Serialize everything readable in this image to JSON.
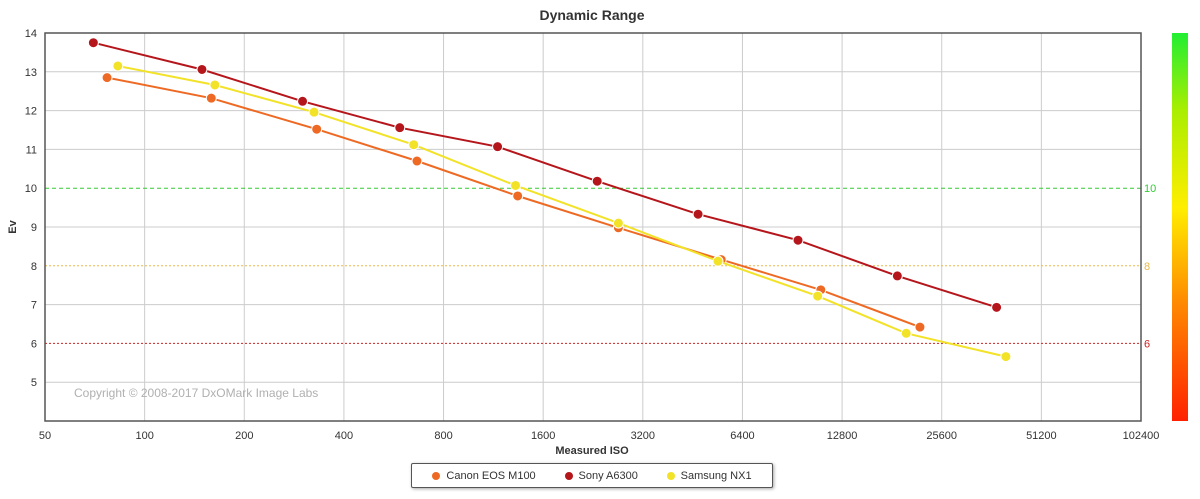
{
  "chart_data": {
    "type": "line",
    "title": "Dynamic Range",
    "xlabel": "Measured ISO",
    "ylabel": "Ev",
    "xscale": "log2",
    "xlim": [
      50,
      102400
    ],
    "ylim": [
      4,
      14
    ],
    "xticks": [
      "50",
      "100",
      "200",
      "400",
      "800",
      "1600",
      "3200",
      "6400",
      "12800",
      "25600",
      "51200",
      "102400"
    ],
    "yticks": [
      "5",
      "6",
      "7",
      "8",
      "9",
      "10",
      "11",
      "12",
      "13",
      "14"
    ],
    "grid": true,
    "legend_position": "bottom-center",
    "reference_lines": [
      {
        "y": 10,
        "label": "10",
        "color": "#33cc33",
        "style": "dashed"
      },
      {
        "y": 8,
        "label": "8",
        "color": "#e8b84a",
        "style": "dotted"
      },
      {
        "y": 6,
        "label": "6",
        "color": "#cc2222",
        "style": "dotted"
      }
    ],
    "color_scale": [
      "#ff2200",
      "#ff8800",
      "#ffee00",
      "#aaee00",
      "#22ee33"
    ],
    "copyright": "Copyright © 2008-2017 DxOMark Image Labs",
    "series": [
      {
        "name": "Canon EOS M100",
        "color": "#ee6a24",
        "x": [
          77,
          159,
          331,
          665,
          1340,
          2700,
          5520,
          11040,
          22000
        ],
        "y": [
          12.85,
          12.32,
          11.52,
          10.7,
          9.8,
          8.98,
          8.16,
          7.38,
          6.42
        ]
      },
      {
        "name": "Sony A6300",
        "color": "#b5161b",
        "x": [
          70,
          149,
          300,
          590,
          1165,
          2330,
          4700,
          9420,
          18800,
          37500
        ],
        "y": [
          13.75,
          13.06,
          12.24,
          11.56,
          11.07,
          10.18,
          9.33,
          8.66,
          7.74,
          6.93
        ]
      },
      {
        "name": "Samsung NX1",
        "color": "#f2e228",
        "x": [
          83,
          163,
          325,
          650,
          1320,
          2700,
          5400,
          10800,
          20000,
          40000
        ],
        "y": [
          13.15,
          12.66,
          11.96,
          11.12,
          10.07,
          9.1,
          8.12,
          7.22,
          6.26,
          5.66
        ]
      }
    ]
  }
}
